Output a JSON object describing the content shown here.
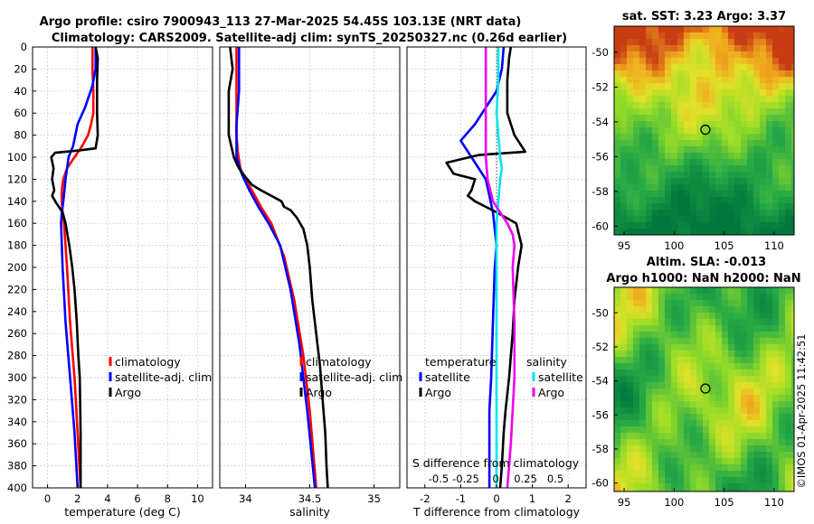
{
  "title_line1": "Argo profile: csiro 7900943_113 27-Mar-2025 54.45S 103.13E (NRT data)",
  "title_line2": "Climatology: CARS2009. Satellite-adj clim: synTS_20250327.nc (0.26d earlier)",
  "footer": "©IMOS 01-Apr-2025 11:42:51",
  "colors": {
    "climatology": "#ff0000",
    "satellite": "#0000ff",
    "argo": "#000000",
    "sal_sat": "#00e5ee",
    "sal_argo": "#ee00ee"
  },
  "chart_data": [
    {
      "type": "line",
      "name": "temperature-profile",
      "xlabel": "temperature (deg C)",
      "ylabel": "",
      "xlim": [
        -1,
        11
      ],
      "ylim": [
        0,
        400
      ],
      "xticks": [
        0,
        2,
        4,
        6,
        8,
        10
      ],
      "xticklabels": [
        "0",
        "2",
        "4",
        "6",
        "8",
        "10"
      ],
      "yticks": [
        0,
        20,
        40,
        60,
        80,
        100,
        120,
        140,
        160,
        180,
        200,
        220,
        240,
        260,
        280,
        300,
        320,
        340,
        360,
        380,
        400
      ],
      "yticklabels": [
        "0",
        "20",
        "40",
        "60",
        "80",
        "100",
        "120",
        "140",
        "160",
        "180",
        "200",
        "220",
        "240",
        "260",
        "280",
        "300",
        "320",
        "340",
        "360",
        "380",
        "400"
      ],
      "legend": [
        "climatology",
        "satellite-adj. clim",
        "Argo"
      ],
      "series": [
        {
          "name": "climatology",
          "color": "#ff0000",
          "x": [
            3.0,
            3.0,
            3.05,
            3.05,
            2.9,
            2.7,
            2.3,
            1.8,
            1.3,
            1.05,
            0.95,
            0.95,
            1.0,
            1.1,
            1.3,
            1.5,
            1.8,
            2.0,
            2.2
          ],
          "y": [
            0,
            20,
            40,
            60,
            70,
            80,
            90,
            100,
            110,
            120,
            130,
            140,
            150,
            160,
            200,
            250,
            300,
            350,
            400
          ]
        },
        {
          "name": "satellite-adj. clim",
          "color": "#0000ff",
          "x": [
            3.2,
            3.2,
            3.0,
            2.5,
            2.0,
            1.7,
            1.4,
            1.2,
            1.05,
            0.95,
            0.9,
            1.0,
            1.2,
            1.5,
            1.8,
            2.0
          ],
          "y": [
            0,
            20,
            35,
            55,
            70,
            90,
            100,
            120,
            140,
            150,
            160,
            200,
            250,
            300,
            350,
            400
          ]
        },
        {
          "name": "Argo",
          "color": "#000000",
          "x": [
            3.2,
            3.35,
            3.3,
            3.3,
            3.35,
            3.2,
            2.0,
            0.5,
            0.25,
            0.4,
            0.3,
            0.45,
            0.3,
            0.6,
            1.0,
            1.2,
            1.45,
            1.65,
            1.8,
            1.95,
            2.05,
            2.15,
            2.2,
            2.2
          ],
          "y": [
            0,
            10,
            30,
            60,
            80,
            92,
            94,
            96,
            100,
            110,
            120,
            130,
            135,
            142,
            150,
            160,
            180,
            200,
            220,
            250,
            280,
            300,
            350,
            400
          ]
        }
      ]
    },
    {
      "type": "line",
      "name": "salinity-profile",
      "xlabel": "salinity",
      "ylabel": "",
      "xlim": [
        33.8,
        35.2
      ],
      "ylim": [
        0,
        400
      ],
      "xticks": [
        34,
        34.5,
        35
      ],
      "xticklabels": [
        "34",
        "34.5",
        "35"
      ],
      "legend": [
        "climatology",
        "satellite-adj. clim",
        "Argo"
      ],
      "series": [
        {
          "name": "climatology",
          "color": "#ff0000",
          "x": [
            33.93,
            33.93,
            33.93,
            33.94,
            33.96,
            34.0,
            34.05,
            34.12,
            34.2,
            34.3,
            34.38,
            34.45,
            34.5,
            34.55
          ],
          "y": [
            0,
            40,
            80,
            95,
            110,
            120,
            130,
            145,
            160,
            190,
            230,
            280,
            330,
            400
          ]
        },
        {
          "name": "satellite-adj. clim",
          "color": "#0000ff",
          "x": [
            33.95,
            33.95,
            33.93,
            33.93,
            33.97,
            34.03,
            34.1,
            34.18,
            34.27,
            34.35,
            34.42,
            34.48,
            34.54
          ],
          "y": [
            0,
            40,
            70,
            100,
            115,
            130,
            145,
            160,
            180,
            220,
            270,
            330,
            400
          ]
        },
        {
          "name": "Argo",
          "color": "#000000",
          "x": [
            33.88,
            33.9,
            33.87,
            33.87,
            33.91,
            33.94,
            33.96,
            34.0,
            34.05,
            34.12,
            34.2,
            34.28,
            34.3,
            34.35,
            34.4,
            34.45,
            34.48,
            34.5,
            34.52,
            34.55,
            34.58,
            34.6,
            34.62,
            34.63,
            34.64
          ],
          "y": [
            0,
            20,
            40,
            80,
            100,
            108,
            112,
            118,
            125,
            130,
            135,
            140,
            145,
            148,
            155,
            165,
            180,
            200,
            230,
            260,
            290,
            320,
            350,
            380,
            400
          ]
        }
      ]
    },
    {
      "type": "line",
      "name": "difference-profile",
      "xlabel": "T difference from climatology",
      "xlabel_top": "S difference from climatology",
      "xlim": [
        -2.5,
        2.5
      ],
      "ylim": [
        0,
        400
      ],
      "xticks": [
        -2,
        -1,
        0,
        1,
        2
      ],
      "xticklabels": [
        "-2",
        "-1",
        "0",
        "1",
        "2"
      ],
      "top_xticklabels": [
        "-0.5",
        "-0.25",
        "0",
        "0.25",
        "0.5"
      ],
      "legend_headers": [
        "temperature",
        "salinity"
      ],
      "legend": [
        "satellite",
        "Argo",
        "satellite",
        "Argo"
      ],
      "series": [
        {
          "name": "T satellite",
          "color": "#0000ff",
          "x": [
            0.2,
            0.15,
            0.0,
            -0.3,
            -0.6,
            -1.0,
            -0.7,
            -0.3,
            -0.2,
            -0.1,
            -0.05,
            0.0,
            -0.05,
            -0.1,
            -0.15,
            -0.2,
            -0.2,
            -0.2,
            -0.2
          ],
          "y": [
            0,
            20,
            40,
            55,
            70,
            85,
            100,
            120,
            135,
            150,
            165,
            180,
            200,
            250,
            300,
            330,
            360,
            380,
            400
          ]
        },
        {
          "name": "T Argo",
          "color": "#000000",
          "x": [
            0.4,
            0.35,
            0.3,
            0.3,
            0.5,
            0.8,
            -0.5,
            -1.4,
            -1.2,
            -0.6,
            -0.7,
            -0.8,
            -0.6,
            0.0,
            0.55,
            0.7,
            0.6,
            0.5,
            0.45,
            0.35,
            0.25,
            0.2,
            0.15,
            0.1
          ],
          "y": [
            0,
            10,
            30,
            60,
            80,
            95,
            98,
            105,
            115,
            120,
            130,
            135,
            140,
            150,
            160,
            180,
            200,
            230,
            260,
            300,
            330,
            350,
            380,
            400
          ]
        },
        {
          "name": "S satellite",
          "color": "#00e5ee",
          "x": [
            0.05,
            0.05,
            0.0,
            0.05,
            0.1,
            0.15,
            0.1,
            0.05,
            0.0,
            0.0,
            0.0,
            0.0,
            0.0,
            0.0,
            0.0
          ],
          "y": [
            0,
            30,
            60,
            80,
            100,
            110,
            120,
            140,
            160,
            200,
            250,
            300,
            350,
            380,
            400
          ]
        },
        {
          "name": "S Argo",
          "color": "#ee00ee",
          "x": [
            -0.3,
            -0.3,
            -0.3,
            -0.3,
            -0.25,
            -0.1,
            0.1,
            0.3,
            0.45,
            0.5,
            0.45,
            0.5,
            0.5,
            0.45,
            0.4,
            0.35,
            0.3
          ],
          "y": [
            0,
            40,
            80,
            100,
            120,
            140,
            150,
            160,
            170,
            180,
            200,
            250,
            300,
            330,
            360,
            380,
            400
          ]
        }
      ]
    },
    {
      "type": "heatmap",
      "name": "sst-map",
      "title": "sat. SST: 3.23 Argo: 3.37",
      "xlim": [
        94,
        112
      ],
      "ylim": [
        -60.5,
        -48.5
      ],
      "xticks": [
        95,
        100,
        105,
        110
      ],
      "xticklabels": [
        "95",
        "100",
        "105",
        "110"
      ],
      "yticks": [
        -50,
        -52,
        -54,
        -56,
        -58,
        -60
      ],
      "yticklabels": [
        "-50",
        "-52",
        "-54",
        "-56",
        "-58",
        "-60"
      ],
      "marker": {
        "lon": 103.13,
        "lat": -54.45
      }
    },
    {
      "type": "heatmap",
      "name": "sla-map",
      "title": "Altim. SLA: -0.013",
      "subtitle": "Argo h1000: NaN h2000: NaN",
      "xlim": [
        94,
        112
      ],
      "ylim": [
        -60.5,
        -48.5
      ],
      "xticks": [
        95,
        100,
        105,
        110
      ],
      "xticklabels": [
        "95",
        "100",
        "105",
        "110"
      ],
      "yticks": [
        -50,
        -52,
        -54,
        -56,
        -58,
        -60
      ],
      "yticklabels": [
        "-50",
        "-52",
        "-54",
        "-56",
        "-58",
        "-60"
      ],
      "marker": {
        "lon": 103.13,
        "lat": -54.45
      }
    }
  ]
}
